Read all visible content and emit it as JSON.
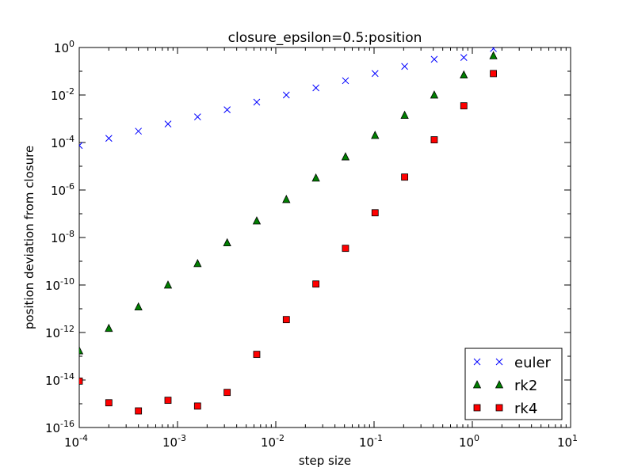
{
  "chart_data": {
    "type": "scatter",
    "title": "closure_epsilon=0.5:position",
    "xlabel": "step size",
    "ylabel": "position deviation from closure",
    "xscale": "log",
    "yscale": "log",
    "xlim": [
      0.0001,
      10
    ],
    "ylim": [
      1e-16,
      1
    ],
    "x_ticks": [
      {
        "base": "10",
        "exp": "-4",
        "value": 0.0001
      },
      {
        "base": "10",
        "exp": "-3",
        "value": 0.001
      },
      {
        "base": "10",
        "exp": "-2",
        "value": 0.01
      },
      {
        "base": "10",
        "exp": "-1",
        "value": 0.1
      },
      {
        "base": "10",
        "exp": "0",
        "value": 1
      },
      {
        "base": "10",
        "exp": "1",
        "value": 10
      }
    ],
    "y_ticks": [
      {
        "base": "10",
        "exp": "0",
        "value": 1
      },
      {
        "base": "10",
        "exp": "-2",
        "value": 0.01
      },
      {
        "base": "10",
        "exp": "-4",
        "value": 0.0001
      },
      {
        "base": "10",
        "exp": "-6",
        "value": 1e-06
      },
      {
        "base": "10",
        "exp": "-8",
        "value": 1e-08
      },
      {
        "base": "10",
        "exp": "-10",
        "value": 1e-10
      },
      {
        "base": "10",
        "exp": "-12",
        "value": 1e-12
      },
      {
        "base": "10",
        "exp": "-14",
        "value": 1e-14
      },
      {
        "base": "10",
        "exp": "-16",
        "value": 1e-16
      }
    ],
    "legend_position": "bottom-right",
    "series": [
      {
        "name": "euler",
        "marker": "x",
        "color": "#0000ff",
        "points": [
          [
            0.0001,
            7.5e-05
          ],
          [
            0.0002,
            0.00015
          ],
          [
            0.0004,
            0.0003
          ],
          [
            0.0008,
            0.0006
          ],
          [
            0.0016,
            0.0012
          ],
          [
            0.0032,
            0.0024
          ],
          [
            0.0064,
            0.005
          ],
          [
            0.0128,
            0.01
          ],
          [
            0.0256,
            0.02
          ],
          [
            0.0512,
            0.04
          ],
          [
            0.1024,
            0.08
          ],
          [
            0.2048,
            0.16
          ],
          [
            0.4096,
            0.32
          ],
          [
            0.8192,
            0.38
          ],
          [
            1.6384,
            0.9
          ]
        ]
      },
      {
        "name": "rk2",
        "marker": "triangle",
        "color": "#007f00",
        "points": [
          [
            0.0001,
            1.7e-13
          ],
          [
            0.0002,
            1.5e-12
          ],
          [
            0.0004,
            1.2e-11
          ],
          [
            0.0008,
            1e-10
          ],
          [
            0.0016,
            8e-10
          ],
          [
            0.0032,
            6e-09
          ],
          [
            0.0064,
            5e-08
          ],
          [
            0.0128,
            4e-07
          ],
          [
            0.0256,
            3.2e-06
          ],
          [
            0.0512,
            2.5e-05
          ],
          [
            0.1024,
            0.0002
          ],
          [
            0.2048,
            0.0014
          ],
          [
            0.4096,
            0.01
          ],
          [
            0.8192,
            0.07
          ],
          [
            1.6384,
            0.45
          ]
        ]
      },
      {
        "name": "rk4",
        "marker": "square",
        "color": "#ff0000",
        "points": [
          [
            0.0001,
            9e-15
          ],
          [
            0.0002,
            1.1e-15
          ],
          [
            0.0004,
            5e-16
          ],
          [
            0.0008,
            1.4e-15
          ],
          [
            0.0016,
            8e-16
          ],
          [
            0.0032,
            3e-15
          ],
          [
            0.0064,
            1.2e-13
          ],
          [
            0.0128,
            3.5e-12
          ],
          [
            0.0256,
            1.1e-10
          ],
          [
            0.0512,
            3.5e-09
          ],
          [
            0.1024,
            1.1e-07
          ],
          [
            0.2048,
            3.5e-06
          ],
          [
            0.4096,
            0.00013
          ],
          [
            0.8192,
            0.0035
          ],
          [
            1.6384,
            0.08
          ]
        ]
      }
    ]
  }
}
